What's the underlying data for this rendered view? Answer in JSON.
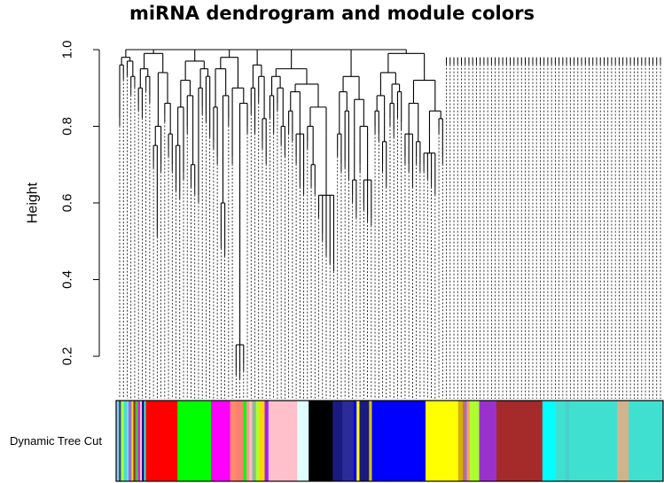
{
  "chart_data": {
    "type": "dendrogram",
    "title": "miRNA dendrogram and module colors",
    "ylabel": "Height",
    "ylim": [
      0.1,
      1.0
    ],
    "yticks": [
      "0.2",
      "0.4",
      "0.6",
      "0.8",
      "1.0"
    ],
    "color_row_label": "Dynamic Tree Cut",
    "leaf_count": 145,
    "tree": [
      [
        0.98,
        [
          0.96,
          0.82,
          0.94
        ],
        [
          0.97,
          0.95,
          [
            0.93,
            0.9,
            0.92
          ]
        ]
      ],
      [
        0.99,
        [
          0.95,
          [
            0.9,
            0.86,
            0.84
          ],
          [
            0.93,
            0.91,
            0.88
          ]
        ],
        [
          0.94,
          [
            0.8,
            [
              0.75,
              0.71,
              0.53
            ],
            0.7
          ],
          [
            0.86,
            0.83,
            [
              0.78,
              0.74,
              0.7
            ]
          ]
        ]
      ],
      [
        0.97,
        [
          0.92,
          [
            0.85,
            [
              0.75,
              0.65,
              0.63
            ],
            0.68
          ],
          [
            0.88,
            0.8,
            [
              0.7,
              0.66,
              0.64
            ]
          ]
        ],
        [
          0.95,
          [
            0.9,
            0.62,
            0.85
          ],
          [
            0.93,
            0.83,
            0.79
          ]
        ]
      ],
      [
        0.98,
        [
          0.95,
          [
            0.85,
            0.76,
            0.72
          ],
          [
            0.88,
            [
              0.6,
              0.5,
              0.48
            ],
            0.82
          ]
        ],
        [
          0.9,
          [
            0.77,
            0.72
          ],
          [
            0.86,
            [
              0.23,
              0.17,
              0.16,
              0.18
            ],
            0.8
          ]
        ]
      ],
      [
        0.96,
        [
          0.9,
          0.85,
          0.8
        ],
        [
          0.93,
          0.88,
          [
            0.82,
            0.76,
            0.72
          ]
        ]
      ],
      [
        0.95,
        [
          0.93,
          [
            0.88,
            0.84,
            0.8
          ],
          [
            0.9,
            0.86,
            [
              0.8,
              0.77,
              0.74
            ]
          ]
        ],
        [
          0.91,
          [
            0.89,
            [
              0.84,
              0.8,
              0.78
            ],
            [
              0.8,
              [
                0.78,
                0.72,
                0.66,
                0.64
              ]
            ]
          ],
          [
            0.85,
            [
              0.8,
              0.76,
              [
                0.7,
                0.66,
                0.64
              ]
            ],
            [
              0.78,
              [
                0.62,
                0.58,
                0.52,
                0.48,
                0.46,
                0.44
              ]
            ]
          ]
        ]
      ],
      [
        0.93,
        [
          0.89,
          [
            0.78,
            0.74,
            0.7
          ],
          [
            0.84,
            0.71,
            0.68
          ]
        ],
        [
          0.87,
          [
            0.76,
            [
              0.66,
              0.62,
              0.58
            ]
          ],
          [
            0.8,
            0.7,
            [
              0.66,
              0.6,
              0.57,
              0.56
            ]
          ]
        ]
      ],
      [
        0.99,
        [
          0.94,
          [
            0.88,
            [
              0.84,
              0.8,
              0.78
            ],
            [
              0.82,
              [
                0.76,
                0.7,
                0.66
              ]
            ]
          ],
          [
            0.91,
            [
              0.86,
              0.82,
              0.79
            ],
            [
              0.89,
              0.84,
              0.81
            ]
          ]
        ],
        [
          0.92,
          [
            0.86,
            [
              0.82,
              [
                0.78,
                0.72,
                0.7,
                0.66
              ]
            ],
            [
              0.76,
              0.72,
              0.7
            ]
          ],
          [
            0.84,
            [
              0.78,
              [
                0.73,
                0.7,
                0.68,
                0.66,
                0.64
              ]
            ],
            [
              0.82,
              0.8,
              [
                0.76,
                0.72
              ]
            ]
          ]
        ]
      ]
    ],
    "module_colors": [
      {
        "color": "#87ceeb",
        "width": 3
      },
      {
        "color": "#2e3f8f",
        "width": 2
      },
      {
        "color": "#adff2f",
        "width": 3
      },
      {
        "color": "#40e0d0",
        "width": 3
      },
      {
        "color": "#87ceeb",
        "width": 2
      },
      {
        "color": "#9370db",
        "width": 3
      },
      {
        "color": "#ffd700",
        "width": 2
      },
      {
        "color": "#a52a2a",
        "width": 2
      },
      {
        "color": "#32cd32",
        "width": 3
      },
      {
        "color": "#ff00ff",
        "width": 2
      },
      {
        "color": "#ffc0cb",
        "width": 2
      },
      {
        "color": "#000080",
        "width": 2
      },
      {
        "color": "#40e0d0",
        "width": 2
      },
      {
        "color": "#ff0000",
        "width": 33
      },
      {
        "color": "#00ff00",
        "width": 35
      },
      {
        "color": "#ff00ff",
        "width": 20
      },
      {
        "color": "#ff8c69",
        "width": 6
      },
      {
        "color": "#fa8072",
        "width": 8
      },
      {
        "color": "#00ff00",
        "width": 3
      },
      {
        "color": "#ff9999",
        "width": 3
      },
      {
        "color": "#ffc0cb",
        "width": 3
      },
      {
        "color": "#8fbc8f",
        "width": 4
      },
      {
        "color": "#adff2f",
        "width": 3
      },
      {
        "color": "#ffd700",
        "width": 6
      },
      {
        "color": "#a020f0",
        "width": 4
      },
      {
        "color": "#ffc0cb",
        "width": 30
      },
      {
        "color": "#e0ffff",
        "width": 12
      },
      {
        "color": "#000000",
        "width": 25
      },
      {
        "color": "#1a1a80",
        "width": 10
      },
      {
        "color": "#2b2b99",
        "width": 12
      },
      {
        "color": "#0000ff",
        "width": 3
      },
      {
        "color": "#ffff00",
        "width": 3
      },
      {
        "color": "#1a1a80",
        "width": 10
      },
      {
        "color": "#d4c400",
        "width": 3
      },
      {
        "color": "#0000ff",
        "width": 56
      },
      {
        "color": "#ffff00",
        "width": 34
      },
      {
        "color": "#d4b000",
        "width": 5
      },
      {
        "color": "#c07060",
        "width": 2
      },
      {
        "color": "#9370db",
        "width": 2
      },
      {
        "color": "#ff9966",
        "width": 3
      },
      {
        "color": "#adff2f",
        "width": 10
      },
      {
        "color": "#9932cc",
        "width": 18
      },
      {
        "color": "#a52a2a",
        "width": 48
      },
      {
        "color": "#00ffff",
        "width": 14
      },
      {
        "color": "#40e0d0",
        "width": 10
      },
      {
        "color": "#48d1cc",
        "width": 4
      },
      {
        "color": "#40e0d0",
        "width": 50
      },
      {
        "color": "#d2b48c",
        "width": 12
      },
      {
        "color": "#40e0d0",
        "width": 36
      }
    ]
  }
}
